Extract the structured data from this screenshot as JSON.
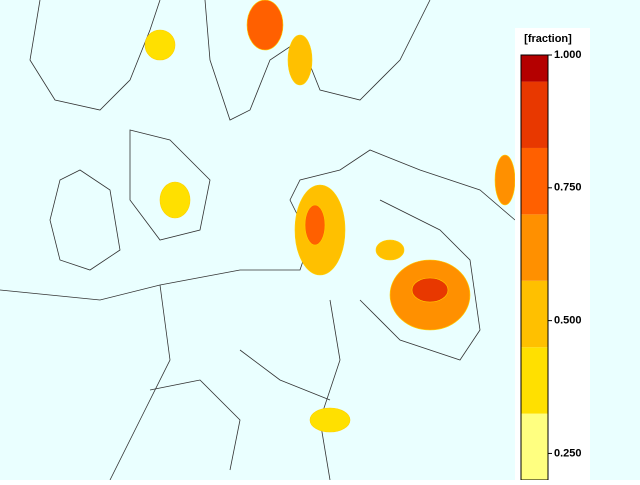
{
  "colorbar": {
    "label": "[fraction]",
    "levels": [
      0.2,
      0.325,
      0.45,
      0.575,
      0.7,
      0.825,
      0.95,
      1.0
    ],
    "colors": [
      "#ffff80",
      "#ffe000",
      "#ffc000",
      "#ff9000",
      "#ff6000",
      "#e83800",
      "#b40000"
    ],
    "lim": [
      0.2,
      1.0
    ],
    "ticks": [
      {
        "value": 1.0,
        "label": "1.000"
      },
      {
        "value": 0.75,
        "label": "0.750"
      },
      {
        "value": 0.5,
        "label": "0.500"
      },
      {
        "value": 0.25,
        "label": "0.250"
      }
    ]
  }
}
